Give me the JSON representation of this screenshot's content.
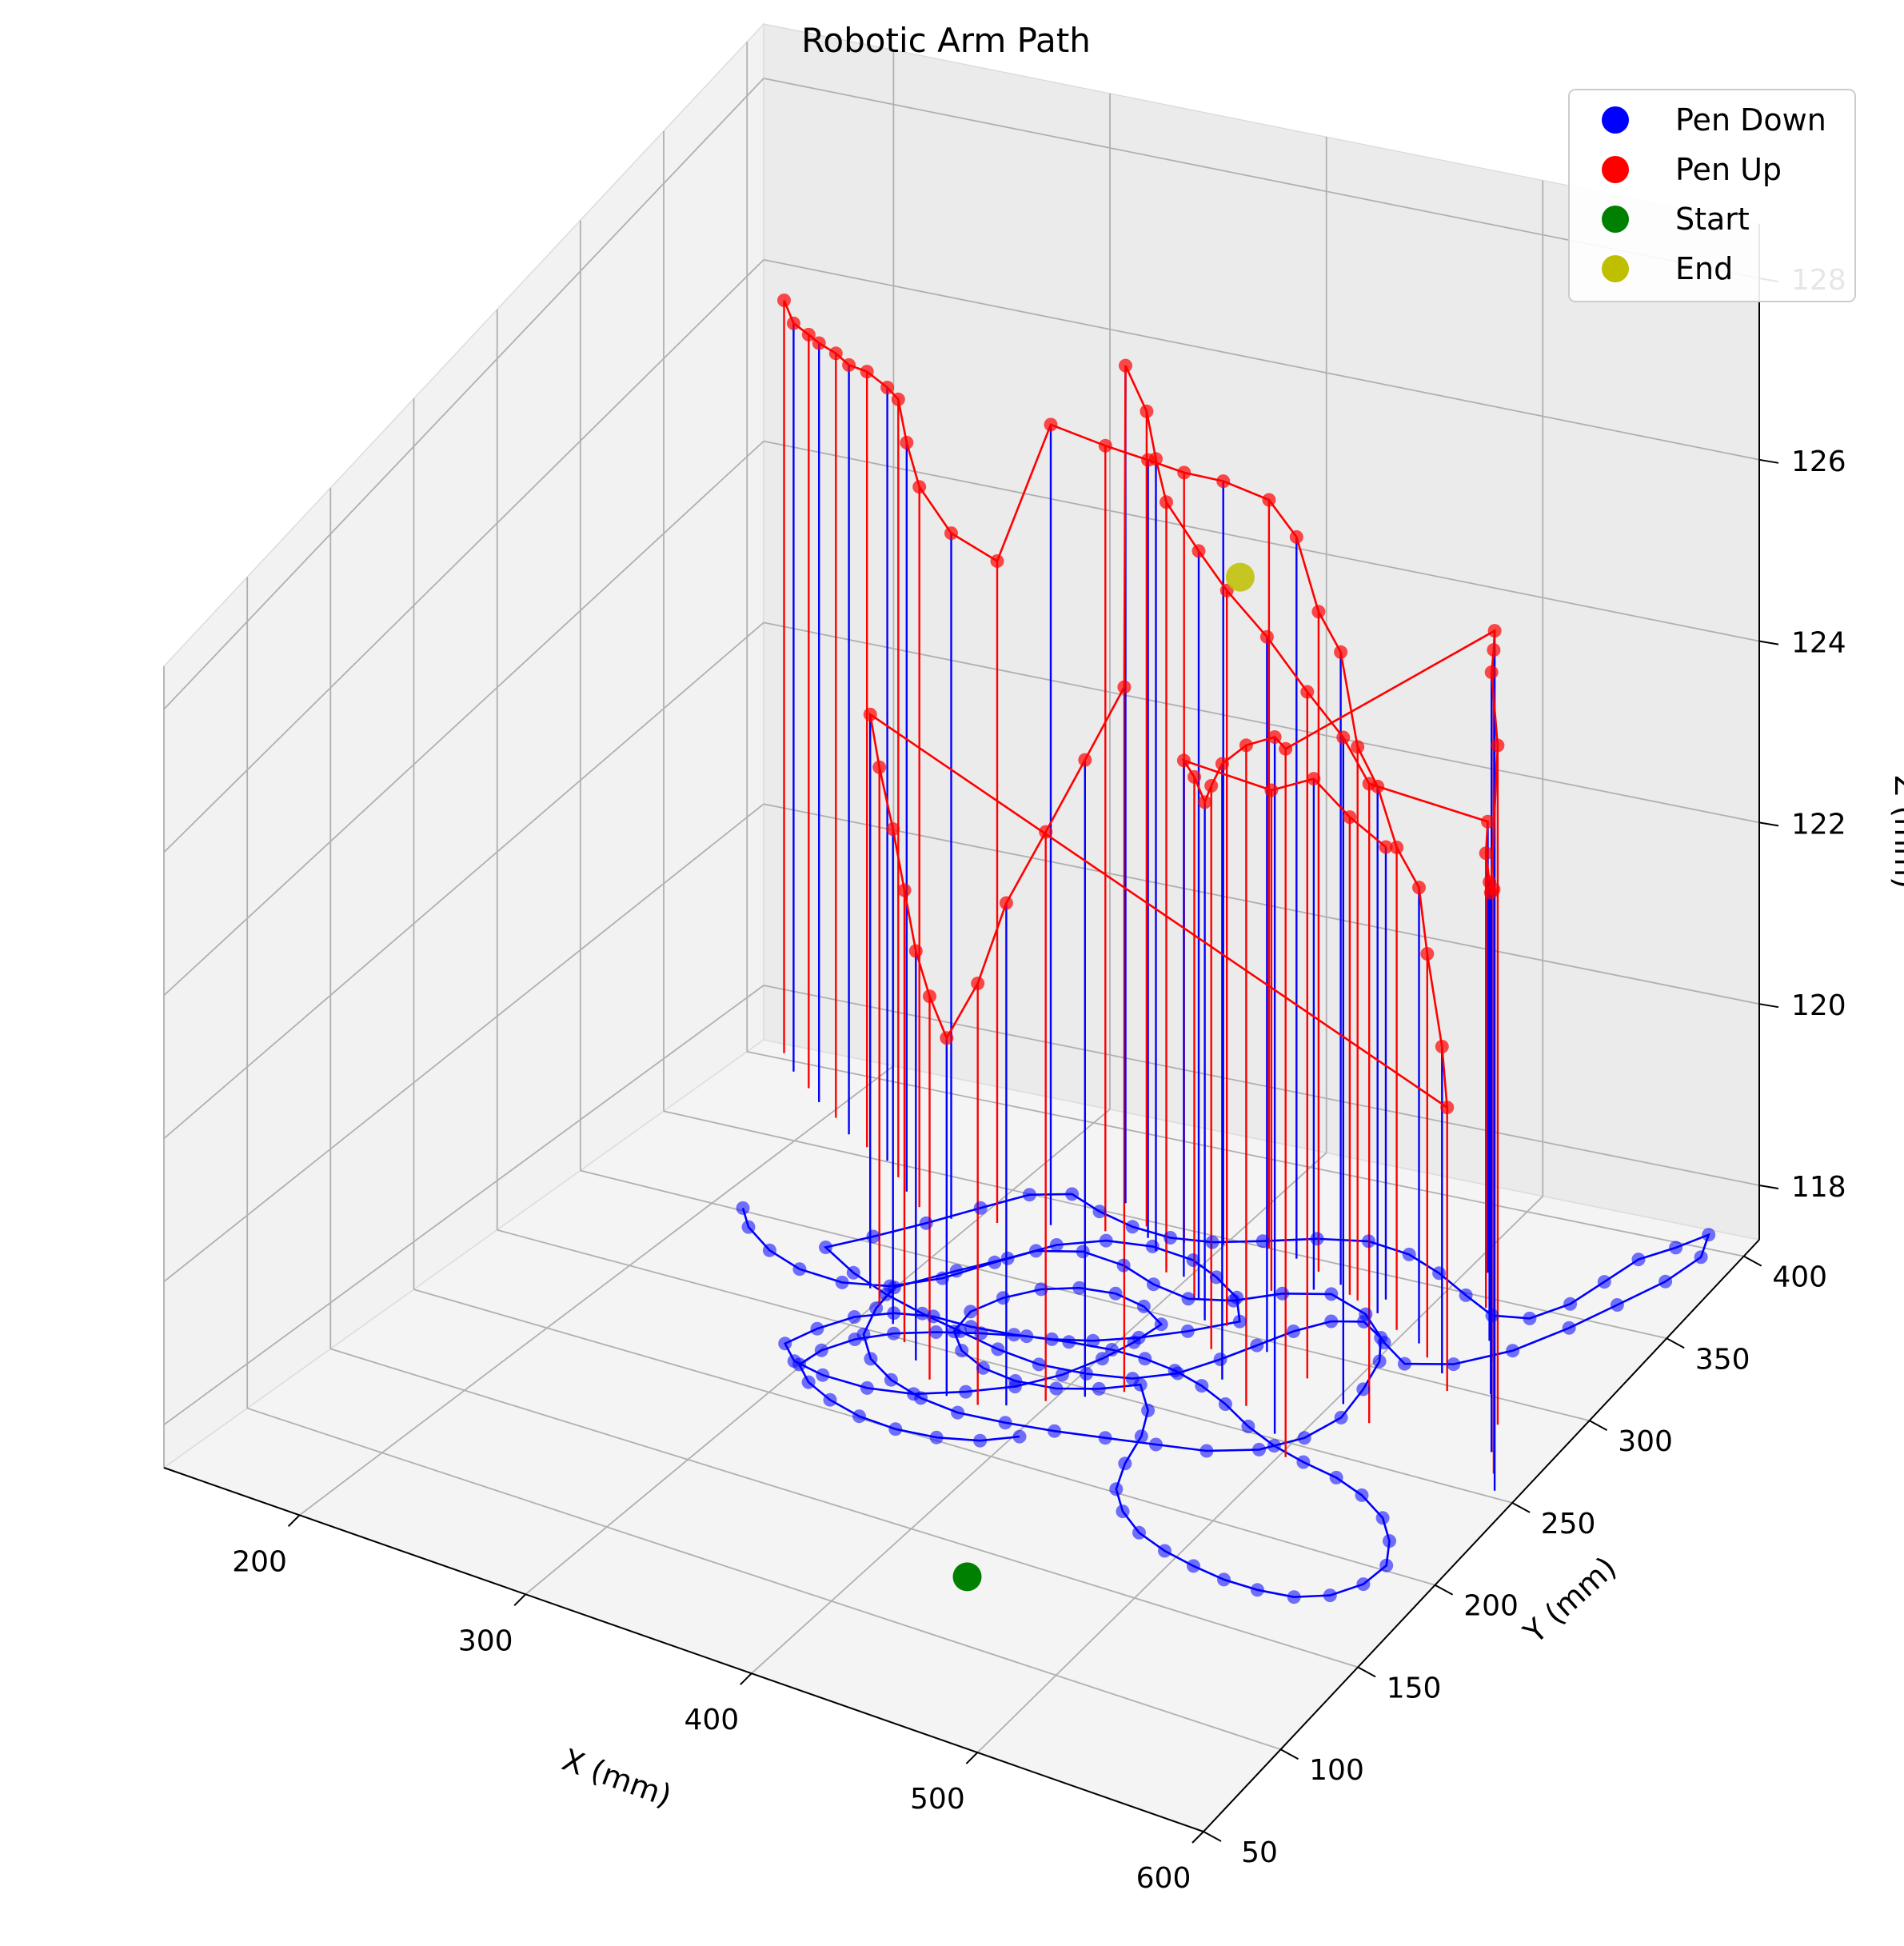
{
  "chart_data": {
    "type": "scatter",
    "projection": "3d",
    "title": "Robotic Arm Path",
    "xlabel": "X (mm)",
    "ylabel": "Y (mm)",
    "zlabel": "Z (mm)",
    "xlim": [
      140,
      600
    ],
    "ylim": [
      50,
      410
    ],
    "zlim": [
      117.4,
      128.6
    ],
    "xticks": [
      "200",
      "300",
      "400",
      "500",
      "600"
    ],
    "yticks": [
      "50",
      "100",
      "150",
      "200",
      "250",
      "300",
      "350",
      "400"
    ],
    "zticks": [
      "118",
      "120",
      "122",
      "124",
      "126",
      "128"
    ],
    "grid": true,
    "legend_position": "top-right",
    "legend": [
      {
        "label": "Pen Down",
        "color": "#0000ff"
      },
      {
        "label": "Pen Up",
        "color": "#ff0000"
      },
      {
        "label": "Start",
        "color": "#008000"
      },
      {
        "label": "End",
        "color": "#bfbf00"
      }
    ],
    "series": [
      {
        "name": "Pen Down",
        "color": "#0000ff",
        "z": 118,
        "points": [
          [
            235,
            272
          ],
          [
            245,
            262
          ],
          [
            262,
            252
          ],
          [
            280,
            246
          ],
          [
            300,
            245
          ],
          [
            318,
            250
          ],
          [
            333,
            262
          ],
          [
            345,
            278
          ],
          [
            355,
            290
          ],
          [
            372,
            296
          ],
          [
            392,
            294
          ],
          [
            410,
            288
          ],
          [
            428,
            285
          ],
          [
            445,
            290
          ],
          [
            460,
            300
          ],
          [
            478,
            306
          ],
          [
            498,
            300
          ],
          [
            515,
            288
          ],
          [
            530,
            280
          ],
          [
            548,
            286
          ],
          [
            565,
            300
          ],
          [
            578,
            318
          ],
          [
            588,
            335
          ],
          [
            598,
            352
          ],
          [
            603,
            368
          ],
          [
            598,
            380
          ],
          [
            590,
            370
          ],
          [
            580,
            360
          ],
          [
            575,
            345
          ],
          [
            570,
            330
          ],
          [
            560,
            318
          ],
          [
            545,
            315
          ],
          [
            528,
            322
          ],
          [
            510,
            330
          ],
          [
            492,
            336
          ],
          [
            472,
            338
          ],
          [
            452,
            333
          ],
          [
            433,
            325
          ],
          [
            415,
            318
          ],
          [
            398,
            315
          ],
          [
            380,
            316
          ],
          [
            362,
            320
          ],
          [
            345,
            326
          ],
          [
            330,
            320
          ],
          [
            318,
            306
          ],
          [
            305,
            290
          ],
          [
            292,
            275
          ],
          [
            280,
            262
          ],
          [
            300,
            252
          ],
          [
            320,
            245
          ],
          [
            340,
            240
          ],
          [
            360,
            236
          ],
          [
            380,
            232
          ],
          [
            400,
            230
          ],
          [
            420,
            232
          ],
          [
            438,
            236
          ],
          [
            452,
            245
          ],
          [
            462,
            258
          ],
          [
            470,
            270
          ],
          [
            478,
            282
          ],
          [
            488,
            292
          ],
          [
            500,
            296
          ],
          [
            512,
            290
          ],
          [
            520,
            278
          ],
          [
            524,
            262
          ],
          [
            526,
            245
          ],
          [
            520,
            230
          ],
          [
            508,
            218
          ],
          [
            490,
            210
          ],
          [
            470,
            206
          ],
          [
            450,
            202
          ],
          [
            430,
            198
          ],
          [
            410,
            195
          ],
          [
            390,
            193
          ],
          [
            372,
            195
          ],
          [
            355,
            200
          ],
          [
            340,
            208
          ],
          [
            328,
            220
          ],
          [
            322,
            236
          ],
          [
            320,
            250
          ],
          [
            335,
            268
          ],
          [
            348,
            282
          ],
          [
            360,
            296
          ],
          [
            376,
            305
          ],
          [
            395,
            308
          ],
          [
            415,
            306
          ],
          [
            430,
            300
          ],
          [
            445,
            292
          ],
          [
            455,
            280
          ],
          [
            440,
            268
          ],
          [
            425,
            258
          ],
          [
            410,
            250
          ],
          [
            395,
            245
          ],
          [
            380,
            242
          ],
          [
            362,
            240
          ],
          [
            345,
            240
          ],
          [
            330,
            236
          ],
          [
            318,
            228
          ],
          [
            310,
            216
          ],
          [
            305,
            203
          ],
          [
            315,
            195
          ],
          [
            330,
            192
          ],
          [
            350,
            192
          ],
          [
            368,
            196
          ],
          [
            385,
            205
          ],
          [
            400,
            215
          ],
          [
            412,
            228
          ],
          [
            420,
            242
          ],
          [
            425,
            255
          ],
          [
            428,
            268
          ],
          [
            415,
            275
          ],
          [
            400,
            278
          ],
          [
            385,
            276
          ],
          [
            372,
            270
          ],
          [
            362,
            260
          ],
          [
            356,
            248
          ],
          [
            358,
            235
          ],
          [
            368,
            226
          ],
          [
            382,
            220
          ],
          [
            398,
            218
          ],
          [
            415,
            220
          ],
          [
            430,
            226
          ],
          [
            443,
            234
          ],
          [
            455,
            222
          ],
          [
            462,
            208
          ],
          [
            466,
            192
          ],
          [
            472,
            178
          ],
          [
            482,
            168
          ],
          [
            495,
            160
          ],
          [
            510,
            155
          ],
          [
            525,
            152
          ],
          [
            540,
            150
          ],
          [
            555,
            150
          ],
          [
            570,
            152
          ],
          [
            582,
            158
          ],
          [
            590,
            168
          ],
          [
            592,
            180
          ],
          [
            585,
            192
          ],
          [
            575,
            202
          ],
          [
            560,
            210
          ],
          [
            545,
            215
          ],
          [
            528,
            218
          ],
          [
            512,
            222
          ],
          [
            496,
            228
          ],
          [
            480,
            236
          ],
          [
            465,
            242
          ],
          [
            450,
            246
          ],
          [
            435,
            248
          ],
          [
            420,
            248
          ],
          [
            402,
            246
          ],
          [
            385,
            243
          ],
          [
            368,
            238
          ],
          [
            352,
            232
          ],
          [
            338,
            225
          ],
          [
            327,
            216
          ],
          [
            320,
            205
          ],
          [
            318,
            194
          ],
          [
            328,
            186
          ],
          [
            342,
            180
          ],
          [
            358,
            176
          ],
          [
            375,
            175
          ],
          [
            392,
            177
          ],
          [
            408,
            182
          ],
          [
            420,
            190
          ]
        ]
      },
      {
        "name": "Pen Up",
        "color": "#ff0000",
        "points": [
          [
            180,
            370,
            126.5
          ],
          [
            192,
            360,
            126.5
          ],
          [
            205,
            352,
            126.6
          ],
          [
            215,
            345,
            126.7
          ],
          [
            228,
            338,
            126.8
          ],
          [
            240,
            330,
            126.9
          ],
          [
            252,
            325,
            127.0
          ],
          [
            265,
            320,
            127.0
          ],
          [
            276,
            312,
            127.1
          ],
          [
            285,
            305,
            126.8
          ],
          [
            296,
            298,
            126.5
          ],
          [
            312,
            296,
            126.1
          ],
          [
            330,
            300,
            125.8
          ],
          [
            350,
            306,
            127.4
          ],
          [
            372,
            310,
            127.2
          ],
          [
            390,
            312,
            127.1
          ],
          [
            405,
            314,
            127.0
          ],
          [
            420,
            318,
            126.9
          ],
          [
            438,
            322,
            126.7
          ],
          [
            452,
            320,
            126.4
          ],
          [
            465,
            316,
            125.7
          ],
          [
            478,
            312,
            125.4
          ],
          [
            490,
            306,
            124.5
          ],
          [
            502,
            302,
            124.2
          ],
          [
            515,
            296,
            123.7
          ],
          [
            528,
            292,
            123.4
          ],
          [
            536,
            286,
            122.8
          ],
          [
            547,
            280,
            121.9
          ],
          [
            555,
            272,
            121.4
          ],
          [
            312,
            246,
            125.0
          ],
          [
            322,
            238,
            124.6
          ],
          [
            334,
            230,
            124.1
          ],
          [
            345,
            222,
            123.6
          ],
          [
            356,
            214,
            123.1
          ],
          [
            368,
            206,
            122.8
          ],
          [
            380,
            200,
            122.5
          ],
          [
            394,
            200,
            123.3
          ],
          [
            404,
            204,
            124.3
          ],
          [
            416,
            212,
            125.1
          ],
          [
            428,
            220,
            125.9
          ],
          [
            440,
            228,
            126.7
          ],
          [
            368,
            328,
            127.7
          ],
          [
            385,
            318,
            127.5
          ],
          [
            398,
            306,
            127.3
          ],
          [
            410,
            296,
            127.1
          ],
          [
            432,
            286,
            126.9
          ],
          [
            452,
            276,
            126.8
          ],
          [
            476,
            268,
            126.6
          ],
          [
            500,
            260,
            126.3
          ],
          [
            522,
            252,
            126.1
          ],
          [
            538,
            246,
            125.8
          ],
          [
            528,
            336,
            123.2
          ],
          [
            540,
            318,
            123.3
          ],
          [
            553,
            302,
            123.4
          ],
          [
            562,
            292,
            123.6
          ],
          [
            572,
            276,
            124.0
          ],
          [
            585,
            262,
            126.2
          ],
          [
            592,
            248,
            127.5
          ],
          [
            600,
            238,
            128.1
          ],
          [
            606,
            230,
            128.6
          ],
          [
            520,
            218,
            126.8
          ],
          [
            508,
            228,
            126.6
          ],
          [
            488,
            238,
            126.1
          ],
          [
            470,
            248,
            125.5
          ],
          [
            455,
            262,
            124.8
          ],
          [
            442,
            276,
            124.2
          ],
          [
            430,
            286,
            124.2
          ],
          [
            418,
            296,
            124.1
          ],
          [
            455,
            300,
            123.9
          ],
          [
            470,
            306,
            124.0
          ],
          [
            485,
            308,
            123.6
          ],
          [
            500,
            310,
            123.3
          ]
        ]
      }
    ],
    "start": [
      452,
      112,
      118
    ],
    "end": [
      448,
      290,
      126.6
    ]
  }
}
